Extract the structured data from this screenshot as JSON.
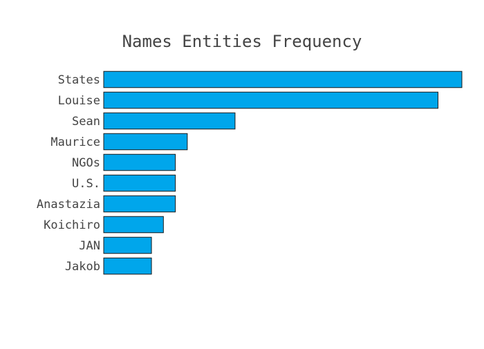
{
  "chart_data": {
    "type": "bar",
    "orientation": "horizontal",
    "title": "Names Entities Frequency",
    "xlabel": "",
    "ylabel": "",
    "categories": [
      "States",
      "Louise",
      "Sean",
      "Maurice",
      "NGOs",
      "U.S.",
      "Anastazia",
      "Koichiro",
      "JAN",
      "Jakob"
    ],
    "values": [
      30,
      28,
      11,
      7,
      6,
      6,
      6,
      5,
      4,
      4
    ],
    "xlim": [
      0,
      30
    ],
    "grid": false,
    "legend": "none",
    "colors": {
      "bar_fill": "#00a6eb",
      "bar_stroke": "#1a1a1a",
      "text": "#444444"
    }
  }
}
